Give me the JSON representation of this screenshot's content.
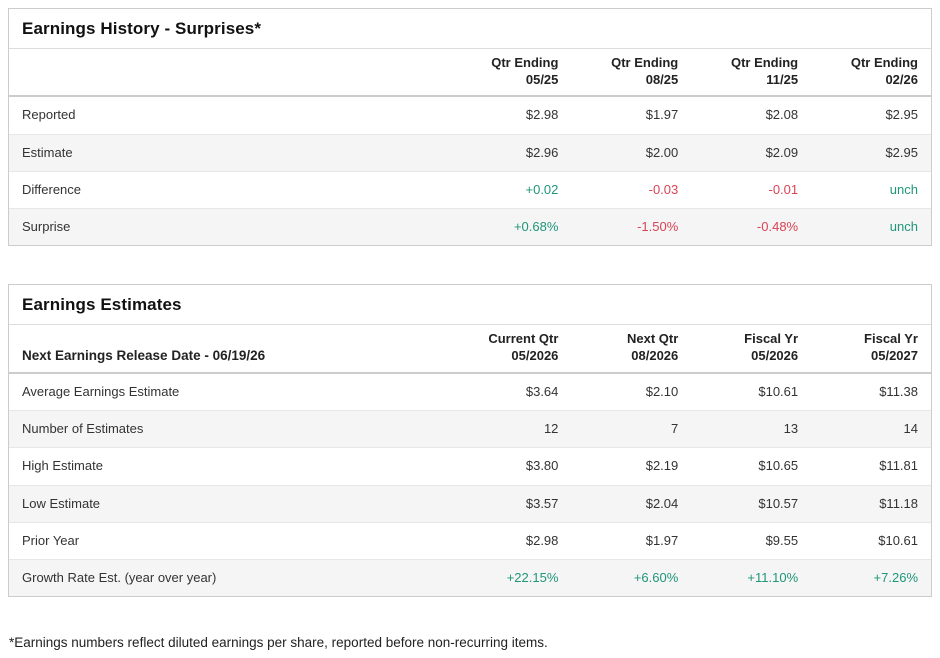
{
  "colors": {
    "positive": "#1f9678",
    "negative": "#d94355",
    "border": "#cccccc",
    "stripe": "#f5f5f5"
  },
  "tables": [
    {
      "title": "Earnings History - Surprises*",
      "header": {
        "label": "",
        "columns": [
          "Qtr Ending\n05/25",
          "Qtr Ending\n08/25",
          "Qtr Ending\n11/25",
          "Qtr Ending\n02/26"
        ]
      },
      "rows": [
        {
          "label": "Reported",
          "values": [
            "$2.98",
            "$1.97",
            "$2.08",
            "$2.95"
          ],
          "value_colors": [
            null,
            null,
            null,
            null
          ]
        },
        {
          "label": "Estimate",
          "values": [
            "$2.96",
            "$2.00",
            "$2.09",
            "$2.95"
          ],
          "value_colors": [
            null,
            null,
            null,
            null
          ]
        },
        {
          "label": "Difference",
          "values": [
            "+0.02",
            "-0.03",
            "-0.01",
            "unch"
          ],
          "value_colors": [
            "pos",
            "neg",
            "neg",
            "pos"
          ]
        },
        {
          "label": "Surprise",
          "values": [
            "+0.68%",
            "-1.50%",
            "-0.48%",
            "unch"
          ],
          "value_colors": [
            "pos",
            "neg",
            "neg",
            "pos"
          ]
        }
      ]
    },
    {
      "title": "Earnings Estimates",
      "header": {
        "label": "Next Earnings Release Date - 06/19/26",
        "columns": [
          "Current Qtr\n05/2026",
          "Next Qtr\n08/2026",
          "Fiscal Yr\n05/2026",
          "Fiscal Yr\n05/2027"
        ]
      },
      "rows": [
        {
          "label": "Average Earnings Estimate",
          "values": [
            "$3.64",
            "$2.10",
            "$10.61",
            "$11.38"
          ],
          "value_colors": [
            null,
            null,
            null,
            null
          ]
        },
        {
          "label": "Number of Estimates",
          "values": [
            "12",
            "7",
            "13",
            "14"
          ],
          "value_colors": [
            null,
            null,
            null,
            null
          ]
        },
        {
          "label": "High Estimate",
          "values": [
            "$3.80",
            "$2.19",
            "$10.65",
            "$11.81"
          ],
          "value_colors": [
            null,
            null,
            null,
            null
          ]
        },
        {
          "label": "Low Estimate",
          "values": [
            "$3.57",
            "$2.04",
            "$10.57",
            "$11.18"
          ],
          "value_colors": [
            null,
            null,
            null,
            null
          ]
        },
        {
          "label": "Prior Year",
          "values": [
            "$2.98",
            "$1.97",
            "$9.55",
            "$10.61"
          ],
          "value_colors": [
            null,
            null,
            null,
            null
          ]
        },
        {
          "label": "Growth Rate Est. (year over year)",
          "values": [
            "+22.15%",
            "+6.60%",
            "+11.10%",
            "+7.26%"
          ],
          "value_colors": [
            "pos",
            "pos",
            "pos",
            "pos"
          ]
        }
      ]
    }
  ],
  "footnote": "*Earnings numbers reflect diluted earnings per share, reported before non-recurring items."
}
